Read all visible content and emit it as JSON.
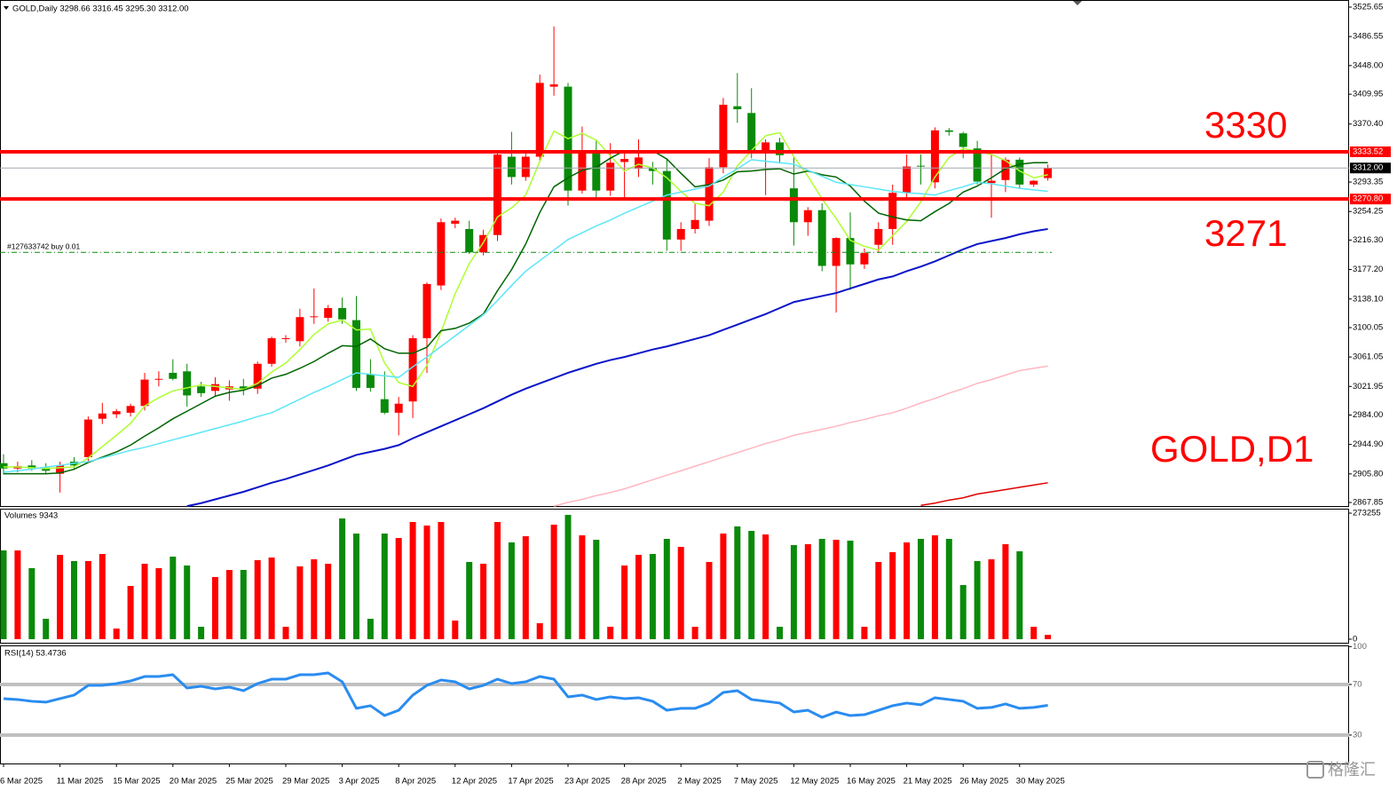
{
  "chart_data": [
    {
      "type": "candlestick",
      "title": "GOLD,Daily  3298.66 3316.45 3295.30 3312.00",
      "categories": [
        "6 Mar 2025",
        null,
        null,
        null,
        "11 Mar 2025",
        null,
        null,
        null,
        "15 Mar 2025",
        null,
        null,
        null,
        "20 Mar 2025",
        null,
        null,
        null,
        "25 Mar 2025",
        null,
        null,
        null,
        "29 Mar 2025",
        null,
        null,
        null,
        "3 Apr 2025",
        null,
        null,
        null,
        "8 Apr 2025",
        null,
        null,
        null,
        "12 Apr 2025",
        null,
        null,
        null,
        "17 Apr 2025",
        null,
        null,
        null,
        "23 Apr 2025",
        null,
        null,
        null,
        "28 Apr 2025",
        null,
        null,
        null,
        "2 May 2025",
        null,
        null,
        null,
        "7 May 2025",
        null,
        null,
        null,
        "12 May 2025",
        null,
        null,
        null,
        "16 May 2025",
        null,
        null,
        null,
        "21 May 2025",
        null,
        null,
        null,
        "26 May 2025",
        null,
        null,
        null,
        "30 May 2025",
        null,
        null
      ],
      "open": [
        2920,
        2913,
        2917,
        2914,
        2906,
        2922,
        2928,
        2979,
        2985,
        2987,
        2996,
        3031,
        3040,
        3042,
        3022,
        3016,
        3018,
        3022,
        3019,
        3052,
        3085,
        3082,
        3114,
        3113,
        3126,
        3110,
        3038,
        3005,
        2987,
        3002,
        3086,
        3156,
        3238,
        3231,
        3200,
        3223,
        3327,
        3300,
        3327,
        3420,
        3420,
        3282,
        3333,
        3282,
        3320,
        3311,
        3312,
        3308,
        3217,
        3231,
        3242,
        3313,
        3394,
        3385,
        3334,
        3346,
        3285,
        3240,
        3256,
        3182,
        3219,
        3184,
        3210,
        3231,
        3279,
        3315,
        3293,
        3362,
        3358,
        3338,
        3292,
        3296,
        3323,
        3290,
        3298.66
      ],
      "high": [
        2932,
        2922,
        2924,
        2920,
        2922,
        2928,
        2982,
        3000,
        2992,
        2999,
        3040,
        3042,
        3058,
        3052,
        3028,
        3034,
        3030,
        3032,
        3055,
        3088,
        3090,
        3125,
        3152,
        3130,
        3140,
        3142,
        3058,
        3042,
        3008,
        3090,
        3160,
        3245,
        3246,
        3242,
        3230,
        3335,
        3360,
        3335,
        3436,
        3500,
        3425,
        3367,
        3350,
        3345,
        3334,
        3350,
        3320,
        3325,
        3240,
        3265,
        3325,
        3405,
        3438,
        3418,
        3350,
        3352,
        3326,
        3260,
        3265,
        3220,
        3253,
        3205,
        3240,
        3290,
        3330,
        3330,
        3366,
        3365,
        3360,
        3348,
        3330,
        3326,
        3326,
        3296,
        3316.45
      ],
      "low": [
        2905,
        2908,
        2910,
        2905,
        2881,
        2912,
        2922,
        2972,
        2980,
        2982,
        2990,
        3022,
        3030,
        2995,
        3008,
        3008,
        3003,
        3010,
        3012,
        3048,
        3080,
        3075,
        3105,
        3108,
        3105,
        3016,
        3015,
        2985,
        2957,
        2980,
        3040,
        3150,
        3232,
        3198,
        3196,
        3215,
        3290,
        3295,
        3320,
        3408,
        3262,
        3278,
        3270,
        3275,
        3270,
        3300,
        3290,
        3202,
        3202,
        3225,
        3235,
        3305,
        3372,
        3325,
        3276,
        3318,
        3209,
        3222,
        3175,
        3120,
        3150,
        3178,
        3200,
        3210,
        3270,
        3290,
        3285,
        3355,
        3325,
        3290,
        3246,
        3280,
        3285,
        3287,
        3295.3
      ],
      "close": [
        2913,
        2916,
        2913,
        2910,
        2917,
        2917,
        2978,
        2986,
        2989,
        2996,
        3031,
        3032,
        3032,
        3010,
        3013,
        3025,
        3022,
        3019,
        3052,
        3086,
        3086,
        3114,
        3115,
        3126,
        3111,
        3020,
        3020,
        2987,
        2999,
        3086,
        3158,
        3240,
        3242,
        3200,
        3223,
        3330,
        3300,
        3327,
        3425,
        3423,
        3282,
        3335,
        3282,
        3319,
        3324,
        3326,
        3308,
        3217,
        3231,
        3243,
        3313,
        3396,
        3390,
        3332,
        3346,
        3329,
        3240,
        3256,
        3182,
        3219,
        3184,
        3199,
        3231,
        3279,
        3314,
        3314,
        3362,
        3360,
        3340,
        3294,
        3295,
        3323,
        3290,
        3295,
        3312
      ],
      "up_color": "#ff0000",
      "down_color": "#0a8a0a",
      "ylim": [
        2863.13,
        3535.08
      ],
      "yticks": [
        3525.65,
        3486.55,
        {
          "value": 3448,
          "label": "3448.00"
        },
        3409.95,
        {
          "value": 3370.4,
          "label": "3370.40"
        },
        3293.35,
        3254.25,
        {
          "value": 3216.3,
          "label": "3216.30"
        },
        {
          "value": 3177.2,
          "label": "3177.20"
        },
        {
          "value": 3138.1,
          "label": "3138.10"
        },
        3100.05,
        3061.05,
        3021.95,
        {
          "value": 2984,
          "label": "2984.00"
        },
        {
          "value": 2944.9,
          "label": "2944.90"
        },
        {
          "value": 2905.8,
          "label": "2905.80"
        },
        2867.85
      ],
      "lines": [
        {
          "color": "#adff2f",
          "values": [
            2915,
            2915,
            2914,
            2913,
            2914,
            2915,
            2927,
            2942,
            2957,
            2973,
            2996,
            3007,
            3016,
            3020,
            3024,
            3022,
            3020,
            3018,
            3026,
            3041,
            3053,
            3071,
            3091,
            3105,
            3110,
            3097,
            3098,
            3053,
            3027,
            3022,
            3050,
            3094,
            3145,
            3185,
            3213,
            3247,
            3259,
            3276,
            3321,
            3361,
            3351,
            3358,
            3349,
            3328,
            3308,
            3317,
            3312,
            3299,
            3281,
            3265,
            3262,
            3280,
            3315,
            3335,
            3355,
            3359,
            3327,
            3301,
            3271,
            3245,
            3216,
            3208,
            3203,
            3222,
            3241,
            3267,
            3300,
            3326,
            3338,
            3334,
            3330,
            3322,
            3308,
            3299,
            3303
          ]
        },
        {
          "color": "#006400",
          "values": [
            2906,
            2906,
            2906,
            2906,
            2907,
            2912,
            2921,
            2928,
            2935,
            2944,
            2956,
            2967,
            2979,
            2989,
            2999,
            3009,
            3014,
            3017,
            3023,
            3033,
            3038,
            3046,
            3055,
            3066,
            3076,
            3075,
            3085,
            3072,
            3066,
            3066,
            3074,
            3096,
            3099,
            3106,
            3118,
            3149,
            3177,
            3211,
            3253,
            3287,
            3299,
            3309,
            3313,
            3325,
            3335,
            3334,
            3335,
            3324,
            3305,
            3287,
            3290,
            3296,
            3307,
            3308,
            3310,
            3311,
            3304,
            3308,
            3303,
            3300,
            3288,
            3268,
            3252,
            3247,
            3243,
            3242,
            3254,
            3265,
            3280,
            3288,
            3299,
            3311,
            3317,
            3319,
            3319
          ]
        },
        {
          "color": "#5ce6f7",
          "values": [
            2908,
            2910,
            2912,
            2915,
            2917,
            2920,
            2922,
            2927,
            2932,
            2937,
            2941,
            2946,
            2951,
            2956,
            2961,
            2966,
            2971,
            2976,
            2982,
            2987,
            2996,
            3005,
            3014,
            3022,
            3031,
            3040,
            3038,
            3036,
            3034,
            3048,
            3061,
            3075,
            3089,
            3103,
            3117,
            3136,
            3156,
            3175,
            3189,
            3203,
            3217,
            3226,
            3235,
            3243,
            3252,
            3260,
            3268,
            3276,
            3280,
            3284,
            3288,
            3300,
            3311,
            3323,
            3321,
            3319,
            3317,
            3309,
            3301,
            3293,
            3290,
            3287,
            3284,
            3281,
            3279,
            3278,
            3276,
            3282,
            3287,
            3293,
            3291,
            3288,
            3285,
            3283,
            3281
          ]
        },
        {
          "color": "#0a14c8",
          "values": [
            null,
            null,
            null,
            null,
            null,
            null,
            null,
            null,
            null,
            null,
            null,
            null,
            null,
            2863,
            2867,
            2872,
            2877,
            2882,
            2888,
            2894,
            2899,
            2905,
            2911,
            2917,
            2924,
            2931,
            2935,
            2939,
            2944,
            2953,
            2961,
            2969,
            2977,
            2985,
            2993,
            3002,
            3011,
            3019,
            3026,
            3033,
            3040,
            3046,
            3052,
            3057,
            3061,
            3066,
            3071,
            3075,
            3080,
            3085,
            3090,
            3097,
            3104,
            3111,
            3118,
            3126,
            3134,
            3138,
            3142,
            3146,
            3152,
            3158,
            3164,
            3168,
            3175,
            3181,
            3188,
            3196,
            3204,
            3211,
            3215,
            3219,
            3224,
            3228,
            3231
          ]
        },
        {
          "color": "#ffb6c1",
          "values": [
            null,
            null,
            null,
            null,
            null,
            null,
            null,
            null,
            null,
            null,
            null,
            null,
            null,
            null,
            null,
            null,
            null,
            null,
            null,
            null,
            null,
            null,
            null,
            null,
            null,
            null,
            null,
            null,
            null,
            null,
            null,
            null,
            null,
            null,
            null,
            null,
            null,
            null,
            null,
            2863,
            2868,
            2872,
            2877,
            2881,
            2886,
            2892,
            2898,
            2904,
            2910,
            2916,
            2922,
            2928,
            2934,
            2940,
            2946,
            2951,
            2957,
            2961,
            2965,
            2969,
            2974,
            2978,
            2983,
            2987,
            2993,
            3000,
            3006,
            3013,
            3019,
            3026,
            3031,
            3037,
            3043,
            3046,
            3049
          ]
        },
        {
          "color": "#e00000",
          "values": [
            null,
            null,
            null,
            null,
            null,
            null,
            null,
            null,
            null,
            null,
            null,
            null,
            null,
            null,
            null,
            null,
            null,
            null,
            null,
            null,
            null,
            null,
            null,
            null,
            null,
            null,
            null,
            null,
            null,
            null,
            null,
            null,
            null,
            null,
            null,
            null,
            null,
            null,
            null,
            null,
            null,
            null,
            null,
            null,
            null,
            null,
            null,
            null,
            null,
            null,
            null,
            null,
            null,
            null,
            null,
            null,
            null,
            null,
            null,
            null,
            null,
            null,
            null,
            null,
            null,
            2864,
            2867,
            2871,
            2874,
            2879,
            2882,
            2885,
            2888,
            2891,
            2894
          ]
        }
      ],
      "levels": [
        {
          "value": 3333.52,
          "label": "3333.52",
          "color": "#ff0000"
        },
        {
          "value": 3312,
          "label": "3312.00",
          "color": "#000000"
        },
        {
          "value": 3270.8,
          "label": "3270.80",
          "color": "#ff0000"
        }
      ],
      "order_line": {
        "value": 3200,
        "label": "#127633742 buy 0.01",
        "color": "#0a8a0a"
      },
      "annotations": [
        "3330",
        "3271",
        "GOLD,D1"
      ]
    },
    {
      "type": "bar",
      "title": "Volumes 9343",
      "values": [
        192430,
        192430,
        153944,
        44259,
        182809,
        169338,
        169338,
        184733,
        23092,
        115458,
        163566,
        153944,
        178960,
        159717,
        26940,
        134701,
        150095,
        150095,
        171263,
        177036,
        26940,
        157793,
        173187,
        163566,
        261705,
        228992,
        44259,
        228992,
        219370,
        254008,
        246310,
        254008,
        40410,
        167414,
        163566,
        254008,
        209749,
        223219,
        34637,
        248235,
        269402,
        225146,
        215522,
        26940,
        159717,
        182809,
        184733,
        217446,
        200127,
        26940,
        167414,
        228992,
        244386,
        234765,
        227067,
        26940,
        203976,
        205900,
        217446,
        215522,
        213597,
        26940,
        167414,
        188581,
        209749,
        217446,
        225146,
        217446,
        117382,
        169338,
        173187,
        205900,
        190505,
        26940,
        9343
      ],
      "ylim": [
        0,
        273255
      ],
      "yticks": [
        273255,
        0
      ]
    },
    {
      "type": "line",
      "title": "RSI(14) 53.4736",
      "values": [
        58.8,
        58.1,
        56.7,
        56.0,
        58.8,
        61.6,
        69.3,
        69.3,
        70.7,
        72.8,
        76.3,
        76.3,
        77.7,
        67.2,
        68.6,
        66.5,
        67.9,
        65.1,
        70.7,
        74.2,
        74.2,
        77.7,
        77.7,
        79.1,
        72.1,
        51.1,
        53.2,
        45.4,
        49.6,
        61.6,
        69.3,
        73.5,
        72.1,
        66.5,
        69.3,
        74.2,
        70.7,
        72.1,
        76.3,
        74.2,
        60.2,
        61.6,
        58.1,
        60.2,
        58.8,
        59.5,
        56.7,
        49.6,
        51.1,
        51.1,
        55.3,
        63.7,
        65.1,
        58.1,
        56.7,
        55.3,
        48.2,
        49.6,
        44.0,
        48.2,
        45.4,
        46.1,
        49.6,
        53.2,
        55.3,
        53.9,
        59.5,
        58.1,
        56.7,
        51.1,
        51.8,
        54.6,
        51.1,
        51.8,
        53.4736
      ],
      "color": "#2a8cf0",
      "ylim": [
        8.9,
        100.9
      ],
      "yticks": [
        100,
        70,
        30
      ],
      "levels": [
        70,
        30
      ]
    }
  ],
  "watermark": "格隆汇"
}
